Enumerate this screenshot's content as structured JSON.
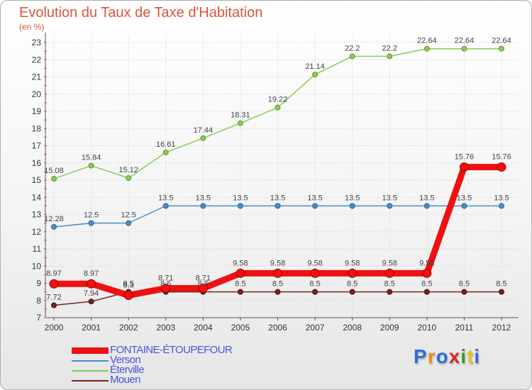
{
  "title": "Evolution du Taux de Taxe d'Habitation",
  "unit": "(en %)",
  "logo": "Proxiti",
  "colors": {
    "title": "#d9563b",
    "fontaine": "#ee1111",
    "verson": "#4a8fc8",
    "eterville": "#88cc55",
    "mouen": "#7a2222"
  },
  "chart_data": {
    "type": "line",
    "title": "Evolution du Taux de Taxe d'Habitation",
    "ylabel": "(en %)",
    "xlabel": "",
    "ylim": [
      7,
      23
    ],
    "yticks": [
      7,
      8,
      9,
      10,
      11,
      12,
      13,
      14,
      15,
      16,
      17,
      18,
      19,
      20,
      21,
      22,
      23
    ],
    "x": [
      "2000",
      "2001",
      "2002",
      "2003",
      "2004",
      "2005",
      "2006",
      "2007",
      "2008",
      "2009",
      "2010",
      "2011",
      "2012"
    ],
    "grid": true,
    "legend_position": "bottom-left",
    "series": [
      {
        "name": "FONTAINE-ÉTOUPEFOUR",
        "values": [
          8.97,
          8.97,
          8.3,
          8.71,
          8.71,
          9.58,
          9.58,
          9.58,
          9.58,
          9.58,
          9.58,
          15.76,
          15.76
        ],
        "labels": [
          "8.97",
          "8.97",
          "8.3",
          "8.71",
          "8.71",
          "9.58",
          "9.58",
          "9.58",
          "9.58",
          "9.58",
          "9.58",
          "15.76",
          "15.76"
        ]
      },
      {
        "name": "Verson",
        "values": [
          12.28,
          12.5,
          12.5,
          13.5,
          13.5,
          13.5,
          13.5,
          13.5,
          13.5,
          13.5,
          13.5,
          13.5,
          13.5
        ],
        "labels": [
          "12.28",
          "12.5",
          "12.5",
          "13.5",
          "13.5",
          "13.5",
          "13.5",
          "13.5",
          "13.5",
          "13.5",
          "13.5",
          "13.5",
          "13.5"
        ]
      },
      {
        "name": "Éterville",
        "values": [
          15.08,
          15.84,
          15.12,
          16.61,
          17.44,
          18.31,
          19.22,
          21.14,
          22.2,
          22.2,
          22.64,
          22.64,
          22.64
        ],
        "labels": [
          "15.08",
          "15.84",
          "15.12",
          "16.61",
          "17.44",
          "18.31",
          "19.22",
          "21.14",
          "22.2",
          "22.2",
          "22.64",
          "22.64",
          "22.64"
        ]
      },
      {
        "name": "Mouen",
        "values": [
          7.72,
          7.94,
          8.5,
          8.5,
          8.5,
          8.5,
          8.5,
          8.5,
          8.5,
          8.5,
          8.5,
          8.5,
          8.5
        ],
        "labels": [
          "7.72",
          "7.94",
          "8.5",
          "8.5",
          "8.5",
          "8.5",
          "8.5",
          "8.5",
          "8.5",
          "8.5",
          "8.5",
          "8.5",
          "8.5"
        ]
      }
    ]
  }
}
